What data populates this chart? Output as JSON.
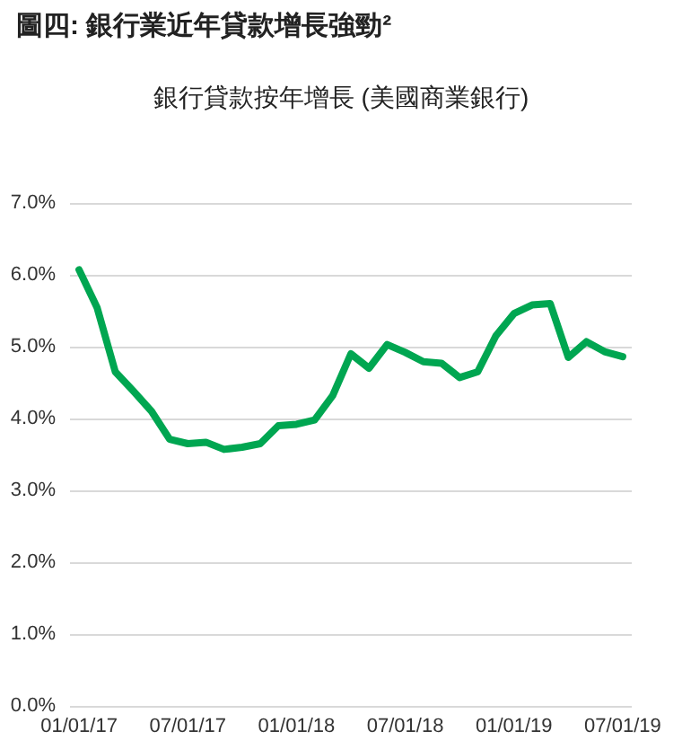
{
  "chart_data": {
    "type": "line",
    "title": "圖四: 銀行業近年貸款增長強勁²",
    "subtitle": "銀行貸款按年增長 (美國商業銀行)",
    "categories": [
      "01/01/17",
      null,
      null,
      null,
      null,
      null,
      "07/01/17",
      null,
      null,
      null,
      null,
      null,
      "01/01/18",
      null,
      null,
      null,
      null,
      null,
      "07/01/18",
      null,
      null,
      null,
      null,
      null,
      "01/01/19",
      null,
      null,
      null,
      null,
      null,
      "07/01/19"
    ],
    "series": [
      {
        "color": "#00a651",
        "values": [
          6.07,
          5.54,
          4.65,
          4.38,
          4.1,
          3.71,
          3.65,
          3.67,
          3.57,
          3.6,
          3.65,
          3.9,
          3.92,
          3.98,
          4.32,
          4.9,
          4.7,
          5.03,
          4.92,
          4.79,
          4.77,
          4.57,
          4.65,
          5.15,
          5.46,
          5.58,
          5.6,
          4.85,
          5.07,
          4.93,
          4.86
        ]
      }
    ],
    "ylim": [
      0,
      7
    ],
    "yticks": [
      {
        "value": 0,
        "label": "0.0%"
      },
      {
        "value": 1,
        "label": "1.0%"
      },
      {
        "value": 2,
        "label": "2.0%"
      },
      {
        "value": 3,
        "label": "3.0%"
      },
      {
        "value": 4,
        "label": "4.0%"
      },
      {
        "value": 5,
        "label": "5.0%"
      },
      {
        "value": 6,
        "label": "6.0%"
      },
      {
        "value": 7,
        "label": "7.0%"
      }
    ],
    "grid": "y",
    "marker": "none",
    "line_style": "solid"
  }
}
